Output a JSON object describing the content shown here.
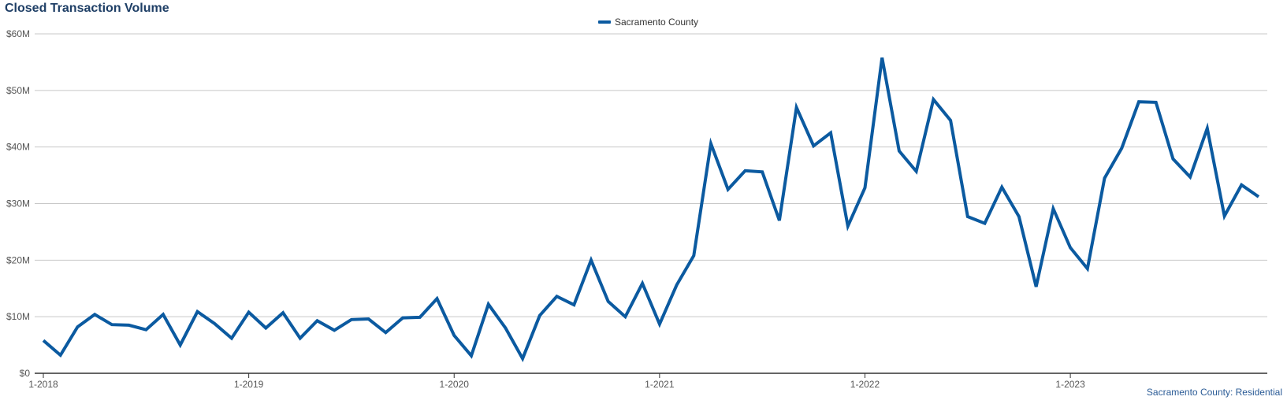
{
  "chart_data": {
    "type": "line",
    "title": "Closed Transaction Volume",
    "legend_position": "top-center",
    "source_label": "Sacramento County: Residential",
    "ylim": [
      0,
      60000000
    ],
    "y_ticks": [
      {
        "value": 0,
        "label": "$0"
      },
      {
        "value": 10000000,
        "label": "$10M"
      },
      {
        "value": 20000000,
        "label": "$20M"
      },
      {
        "value": 30000000,
        "label": "$30M"
      },
      {
        "value": 40000000,
        "label": "$40M"
      },
      {
        "value": 50000000,
        "label": "$50M"
      },
      {
        "value": 60000000,
        "label": "$60M"
      }
    ],
    "x_ticks": [
      {
        "index": 0,
        "label": "1-2018"
      },
      {
        "index": 12,
        "label": "1-2019"
      },
      {
        "index": 24,
        "label": "1-2020"
      },
      {
        "index": 36,
        "label": "1-2021"
      },
      {
        "index": 48,
        "label": "1-2022"
      },
      {
        "index": 60,
        "label": "1-2023"
      }
    ],
    "grid": true,
    "colors": {
      "series": "#0b5aa0",
      "grid": "#c8c8c8",
      "axis": "#333333"
    },
    "series": [
      {
        "name": "Sacramento County",
        "values": [
          5800000,
          3200000,
          8200000,
          10400000,
          8600000,
          8500000,
          7700000,
          10400000,
          5000000,
          10900000,
          8800000,
          6200000,
          10800000,
          8000000,
          10700000,
          6200000,
          9300000,
          7600000,
          9500000,
          9600000,
          7200000,
          9800000,
          9900000,
          13200000,
          6700000,
          3100000,
          12200000,
          8000000,
          2600000,
          10200000,
          13600000,
          12100000,
          20000000,
          12700000,
          10000000,
          15900000,
          8700000,
          15600000,
          20800000,
          40600000,
          32500000,
          35800000,
          35600000,
          27000000,
          47000000,
          40200000,
          42500000,
          26000000,
          32800000,
          55800000,
          39300000,
          35700000,
          48400000,
          44700000,
          27700000,
          26500000,
          32900000,
          27700000,
          15300000,
          29100000,
          22200000,
          18500000,
          34500000,
          39800000,
          48000000,
          47900000,
          37900000,
          34700000,
          43300000,
          27800000,
          33300000,
          31200000
        ]
      }
    ]
  }
}
